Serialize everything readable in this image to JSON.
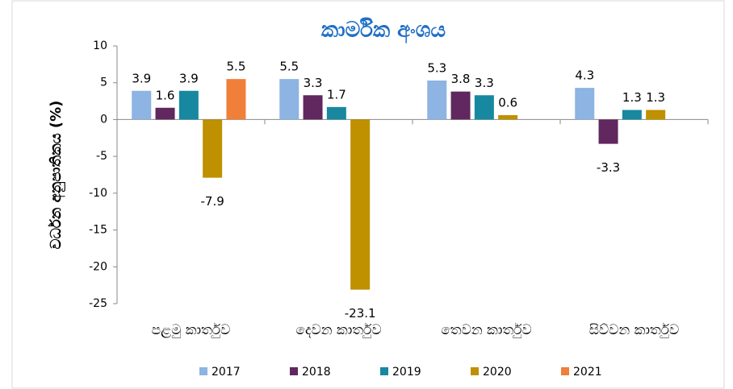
{
  "chart_data": {
    "type": "bar",
    "title": "කාර්මික අංශය",
    "y_label": "වර්ධන අනුපාතිකය (%)",
    "categories": [
      "පළමු කාර්තුව",
      "දෙවන කාර්තුව",
      "තෙවන කාර්තුව",
      "සිව්වන කාර්තුව"
    ],
    "series": [
      {
        "name": "2017",
        "color": "#8db4e2",
        "values": [
          3.9,
          5.5,
          5.3,
          4.3
        ]
      },
      {
        "name": "2018",
        "color": "#60285f",
        "values": [
          1.6,
          3.3,
          3.8,
          -3.3
        ]
      },
      {
        "name": "2019",
        "color": "#17889f",
        "values": [
          3.9,
          1.7,
          3.3,
          1.3
        ]
      },
      {
        "name": "2020",
        "color": "#bf9000",
        "values": [
          -7.9,
          -23.1,
          0.6,
          1.3
        ]
      },
      {
        "name": "2021",
        "color": "#f07f3a",
        "values": [
          5.5,
          null,
          null,
          null
        ]
      }
    ],
    "ylim": [
      -25,
      10
    ],
    "yticks": [
      -25,
      -20,
      -15,
      -10,
      -5,
      0,
      5,
      10
    ],
    "grid": false,
    "legend": "bottom"
  }
}
